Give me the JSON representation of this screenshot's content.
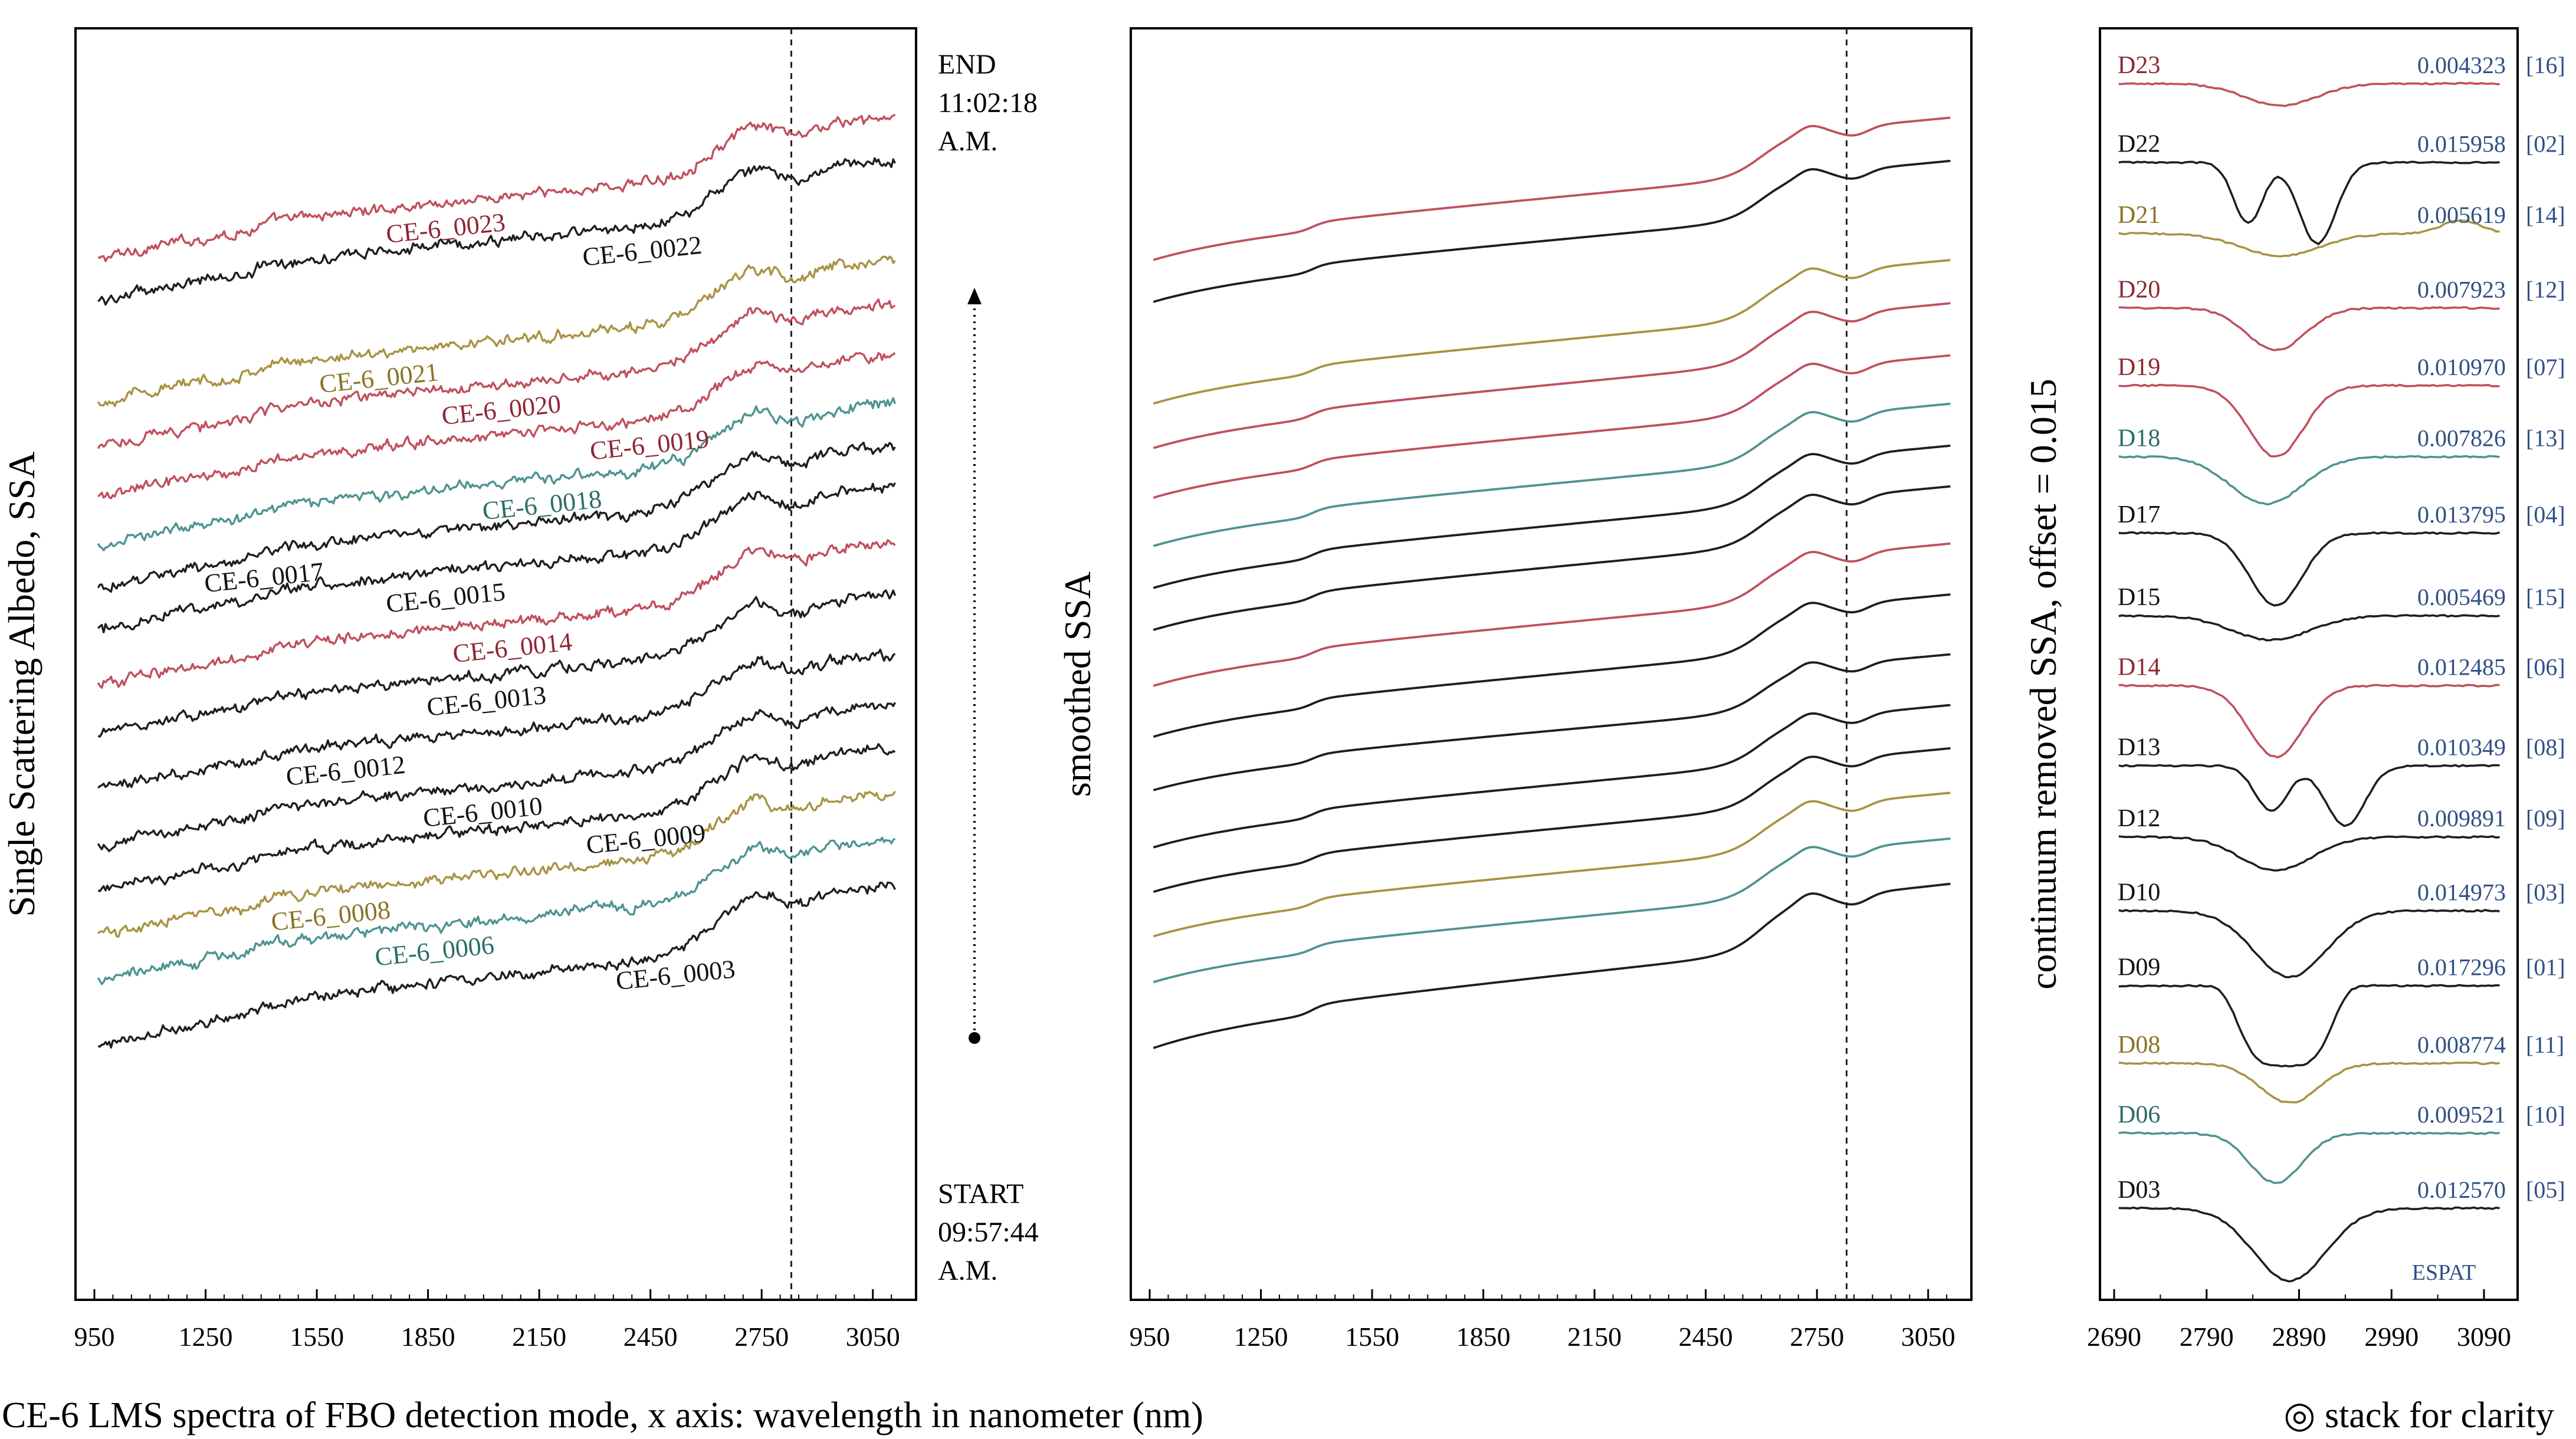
{
  "colors": {
    "red": "#c0505e",
    "black": "#1e1e1e",
    "gold": "#a99343",
    "teal": "#4e9490",
    "label_red": "#8e2733",
    "label_gold": "#8a7424",
    "label_teal": "#2c6d68",
    "index_blue": "#2f4f86"
  },
  "chart_data": [
    {
      "id": "raw",
      "type": "line",
      "ylabel": "Single Scattering Albedo, SSA",
      "x_range": [
        950,
        3130
      ],
      "xticks": [
        "950",
        "1250",
        "1550",
        "1850",
        "2150",
        "2450",
        "2750",
        "3050"
      ],
      "xtick_values": [
        950,
        1250,
        1550,
        1850,
        2150,
        2450,
        2750,
        3050
      ],
      "vline_x": 2830,
      "series": [
        {
          "name": "CE-6_0023",
          "label": "CE-6_0023",
          "color": "red",
          "start": 0.817,
          "end": 0.927,
          "label_x": 1900
        },
        {
          "name": "CE-6_0022",
          "label": "CE-6_0022",
          "color": "black",
          "start": 0.784,
          "end": 0.893,
          "label_x": 2430
        },
        {
          "name": "CE-6_0021",
          "label": "CE-6_0021",
          "color": "gold",
          "start": 0.704,
          "end": 0.815,
          "label_x": 1720
        },
        {
          "name": "CE-6_0020",
          "label": "CE-6_0020",
          "color": "red",
          "start": 0.669,
          "end": 0.781,
          "label_x": 2050
        },
        {
          "name": "CE-6_0019",
          "label": "CE-6_0019",
          "color": "red",
          "start": 0.63,
          "end": 0.74,
          "label_x": 2450
        },
        {
          "name": "CE-6_0018",
          "label": "CE-6_0018",
          "color": "teal",
          "start": 0.592,
          "end": 0.702,
          "label_x": 2160
        },
        {
          "name": "CE-6_0017",
          "label": "CE-6_0017",
          "color": "black",
          "start": 0.559,
          "end": 0.669,
          "label_x": 1410
        },
        {
          "name": "CE-6_0015",
          "label": "CE-6_0015",
          "color": "black",
          "start": 0.526,
          "end": 0.637,
          "label_x": 1900
        },
        {
          "name": "CE-6_0014",
          "label": "CE-6_0014",
          "color": "red",
          "start": 0.482,
          "end": 0.592,
          "label_x": 2080
        },
        {
          "name": "CE-6_0013",
          "label": "CE-6_0013",
          "color": "black",
          "start": 0.442,
          "end": 0.552,
          "label_x": 2010
        },
        {
          "name": "CE-6_0012",
          "label": "CE-6_0012",
          "color": "black",
          "start": 0.4,
          "end": 0.505,
          "label_x": 1630
        },
        {
          "name": "CE-6_0010",
          "label": "CE-6_0010",
          "color": "black",
          "start": 0.355,
          "end": 0.465,
          "label_x": 2000
        },
        {
          "name": "CE-6_0009",
          "label": "CE-6_0009",
          "color": "black",
          "start": 0.32,
          "end": 0.431,
          "label_x": 2440
        },
        {
          "name": "CE-6_0008",
          "label": "CE-6_0008",
          "color": "gold",
          "start": 0.285,
          "end": 0.396,
          "label_x": 1590
        },
        {
          "name": "CE-6_0006",
          "label": "CE-6_0006",
          "color": "teal",
          "start": 0.249,
          "end": 0.36,
          "label_x": 1870
        },
        {
          "name": "CE-6_0003",
          "label": "CE-6_0003",
          "color": "black",
          "start": 0.197,
          "end": 0.324,
          "label_x": 2520
        }
      ],
      "annotations": {
        "end_lines": [
          "END",
          "11:02:18",
          "A.M."
        ],
        "start_lines": [
          "START",
          "09:57:44",
          "A.M."
        ]
      }
    },
    {
      "id": "smoothed",
      "type": "line",
      "ylabel": "smoothed SSA",
      "x_range": [
        950,
        3130
      ],
      "xticks": [
        "950",
        "1250",
        "1550",
        "1850",
        "2150",
        "2450",
        "2750",
        "3050"
      ],
      "xtick_values": [
        950,
        1250,
        1550,
        1850,
        2150,
        2450,
        2750,
        3050
      ],
      "vline_x": 2830,
      "series_ref": "raw"
    },
    {
      "id": "continuum",
      "type": "line",
      "ylabel": "continuum removed SSA, offset = 0.015",
      "x_range": [
        2690,
        3110
      ],
      "xticks": [
        "2690",
        "2790",
        "2890",
        "2990",
        "3090"
      ],
      "xtick_values": [
        2690,
        2790,
        2890,
        2990,
        3090
      ],
      "watermark": "ESPAT",
      "series": [
        {
          "name": "D23",
          "depth": "0.004323",
          "index": "[16]",
          "color": "red",
          "base": 0.9565,
          "d": 0.0173,
          "shape": "single",
          "c": 2870,
          "w": 55
        },
        {
          "name": "D22",
          "depth": "0.015958",
          "index": "[02]",
          "color": "black",
          "base": 0.8945,
          "d": 0.0638,
          "shape": "double",
          "c": 2835,
          "c2": 2910,
          "w": 22,
          "w2": 28
        },
        {
          "name": "D21",
          "depth": "0.005619",
          "index": "[14]",
          "color": "gold",
          "base": 0.8385,
          "d": 0.0175,
          "shape": "wavy",
          "c": 2870,
          "w": 60
        },
        {
          "name": "D20",
          "depth": "0.007923",
          "index": "[12]",
          "color": "red",
          "base": 0.78,
          "d": 0.033,
          "shape": "single",
          "c": 2865,
          "w": 45
        },
        {
          "name": "D19",
          "depth": "0.010970",
          "index": "[07]",
          "color": "red",
          "base": 0.719,
          "d": 0.056,
          "shape": "single",
          "c": 2865,
          "w": 42
        },
        {
          "name": "D18",
          "depth": "0.007826",
          "index": "[13]",
          "color": "teal",
          "base": 0.663,
          "d": 0.037,
          "shape": "single",
          "c": 2855,
          "w": 55
        },
        {
          "name": "D17",
          "depth": "0.013795",
          "index": "[04]",
          "color": "black",
          "base": 0.603,
          "d": 0.057,
          "shape": "single",
          "c": 2865,
          "w": 40
        },
        {
          "name": "D15",
          "depth": "0.005469",
          "index": "[15]",
          "color": "black",
          "base": 0.538,
          "d": 0.019,
          "shape": "single",
          "c": 2860,
          "w": 60
        },
        {
          "name": "D14",
          "depth": "0.012485",
          "index": "[06]",
          "color": "red",
          "base": 0.483,
          "d": 0.056,
          "shape": "single",
          "c": 2865,
          "w": 42
        },
        {
          "name": "D13",
          "depth": "0.010349",
          "index": "[08]",
          "color": "black",
          "base": 0.42,
          "d": 0.047,
          "shape": "double",
          "c": 2860,
          "c2": 2940,
          "w": 25,
          "w2": 30
        },
        {
          "name": "D12",
          "depth": "0.009891",
          "index": "[09]",
          "color": "black",
          "base": 0.364,
          "d": 0.026,
          "shape": "single",
          "c": 2865,
          "w": 55
        },
        {
          "name": "D10",
          "depth": "0.014973",
          "index": "[03]",
          "color": "black",
          "base": 0.306,
          "d": 0.052,
          "shape": "single",
          "c": 2880,
          "w": 55
        },
        {
          "name": "D09",
          "depth": "0.017296",
          "index": "[01]",
          "color": "black",
          "base": 0.247,
          "d": 0.063,
          "shape": "flat",
          "c": 2875,
          "w": 55
        },
        {
          "name": "D08",
          "depth": "0.008774",
          "index": "[11]",
          "color": "gold",
          "base": 0.186,
          "d": 0.031,
          "shape": "single",
          "c": 2880,
          "w": 45
        },
        {
          "name": "D06",
          "depth": "0.009521",
          "index": "[10]",
          "color": "teal",
          "base": 0.131,
          "d": 0.039,
          "shape": "single",
          "c": 2865,
          "w": 40
        },
        {
          "name": "D03",
          "depth": "0.012570",
          "index": "[05]",
          "color": "black",
          "base": 0.072,
          "d": 0.057,
          "shape": "single",
          "c": 2880,
          "w": 55
        }
      ]
    }
  ],
  "caption": {
    "left": "CE-6 LMS spectra of FBO detection mode, x axis: wavelength in nanometer (nm)",
    "right": "◎ stack for clarity"
  }
}
